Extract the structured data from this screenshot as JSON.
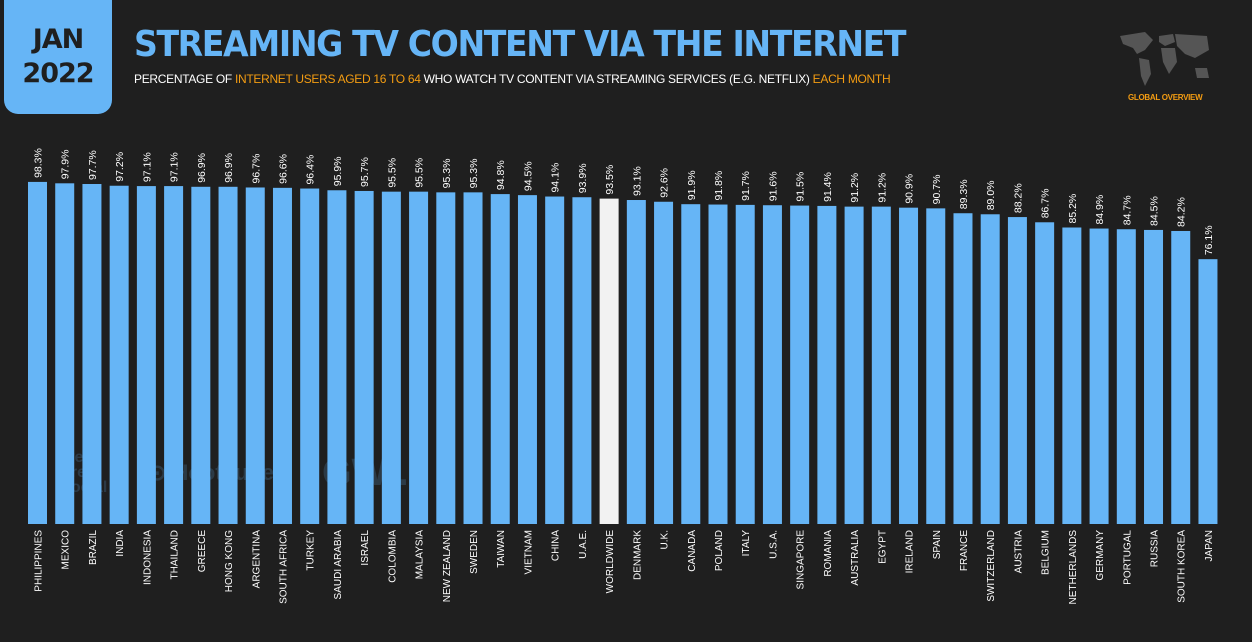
{
  "header": {
    "date_month": "JAN",
    "date_year": "2022",
    "title": "STREAMING TV CONTENT VIA THE INTERNET",
    "subtitle_parts": [
      "PERCENTAGE OF ",
      "INTERNET USERS AGED 16 TO 64",
      " WHO WATCH TV CONTENT VIA STREAMING SERVICES (E.G. NETFLIX) ",
      "EACH MONTH"
    ],
    "section_label": "GLOBAL OVERVIEW"
  },
  "watermarks": [
    "we are social",
    "Hootsuite",
    "GWI."
  ],
  "colors": {
    "background": "#1f1f1f",
    "bar": "#66b5f6",
    "highlight_bar": "#f2f2f2",
    "accent": "#f39c12"
  },
  "chart_data": {
    "type": "bar",
    "title": "STREAMING TV CONTENT VIA THE INTERNET",
    "xlabel": "",
    "ylabel": "",
    "ylim": [
      0,
      100
    ],
    "grid": false,
    "value_suffix": "%",
    "highlight_category": "WORLDWIDE",
    "categories": [
      "PHILIPPINES",
      "MEXICO",
      "BRAZIL",
      "INDIA",
      "INDONESIA",
      "THAILAND",
      "GREECE",
      "HONG KONG",
      "ARGENTINA",
      "SOUTH AFRICA",
      "TURKEY",
      "SAUDI ARABIA",
      "ISRAEL",
      "COLOMBIA",
      "MALAYSIA",
      "NEW ZEALAND",
      "SWEDEN",
      "TAIWAN",
      "VIETNAM",
      "CHINA",
      "U.A.E.",
      "WORLDWIDE",
      "DENMARK",
      "U.K.",
      "CANADA",
      "POLAND",
      "ITALY",
      "U.S.A.",
      "SINGAPORE",
      "ROMANIA",
      "AUSTRALIA",
      "EGYPT",
      "IRELAND",
      "SPAIN",
      "FRANCE",
      "SWITZERLAND",
      "AUSTRIA",
      "BELGIUM",
      "NETHERLANDS",
      "GERMANY",
      "PORTUGAL",
      "RUSSIA",
      "SOUTH KOREA",
      "JAPAN"
    ],
    "values": [
      98.3,
      97.9,
      97.7,
      97.2,
      97.1,
      97.1,
      96.9,
      96.9,
      96.7,
      96.6,
      96.4,
      95.9,
      95.7,
      95.5,
      95.5,
      95.3,
      95.3,
      94.8,
      94.5,
      94.1,
      93.9,
      93.5,
      93.1,
      92.6,
      91.9,
      91.8,
      91.7,
      91.6,
      91.5,
      91.4,
      91.2,
      91.2,
      90.9,
      90.7,
      89.3,
      89.0,
      88.2,
      86.7,
      85.2,
      84.9,
      84.7,
      84.5,
      84.2,
      76.1
    ]
  }
}
